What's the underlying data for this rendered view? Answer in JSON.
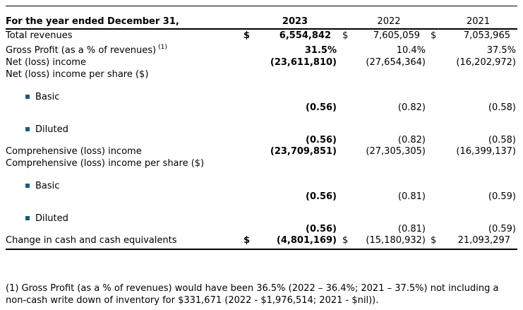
{
  "table": {
    "header": {
      "label": "For the year ended December 31,",
      "years": [
        "2023",
        "2022",
        "2021"
      ]
    },
    "rows": [
      {
        "type": "data",
        "label": "Total revenues",
        "dollars": [
          "$",
          "$",
          "$"
        ],
        "values": [
          "6,554,842",
          "7,605,059",
          "7,053,965"
        ]
      },
      {
        "type": "data",
        "label": "Gross Profit (as a % of revenues)",
        "sup": "(1)",
        "values": [
          "31.5%",
          "10.4%",
          "37.5%"
        ]
      },
      {
        "type": "data",
        "label": "Net (loss) income",
        "values": [
          "(23,611,810)",
          "(27,654,364)",
          "(16,202,972)"
        ]
      },
      {
        "type": "data",
        "label": "Net (loss) income per share ($)"
      },
      {
        "type": "bullet",
        "label": "Basic"
      },
      {
        "type": "values",
        "values": [
          "(0.56)",
          "(0.82)",
          "(0.58)"
        ]
      },
      {
        "type": "bullet",
        "label": "Diluted"
      },
      {
        "type": "values",
        "values": [
          "(0.56)",
          "(0.82)",
          "(0.58)"
        ]
      },
      {
        "type": "data",
        "label": "Comprehensive (loss) income",
        "values": [
          "(23,709,851)",
          "(27,305,305)",
          "(16,399,137)"
        ]
      },
      {
        "type": "data",
        "label": "Comprehensive (loss) income per share ($)"
      },
      {
        "type": "bullet",
        "label": "Basic"
      },
      {
        "type": "values",
        "values": [
          "(0.56)",
          "(0.81)",
          "(0.59)"
        ]
      },
      {
        "type": "bullet",
        "label": "Diluted"
      },
      {
        "type": "values",
        "values": [
          "(0.56)",
          "(0.81)",
          "(0.59)"
        ]
      },
      {
        "type": "data",
        "label": "Change in cash and cash equivalents",
        "dollars": [
          "$",
          "$",
          "$"
        ],
        "values": [
          "(4,801,169)",
          "(15,180,932)",
          "21,093,297"
        ],
        "last": true
      }
    ],
    "footnote": "(1) Gross Profit (as a % of revenues) would have been 36.5% (2022 – 36.4%; 2021 – 37.5%) not including a non-cash write down of inventory for $331,671 (2022 - $1,976,514; 2021 - $nil)).",
    "colors": {
      "bullet": "#1b5c78",
      "text": "#000000",
      "rule": "#000000"
    }
  }
}
